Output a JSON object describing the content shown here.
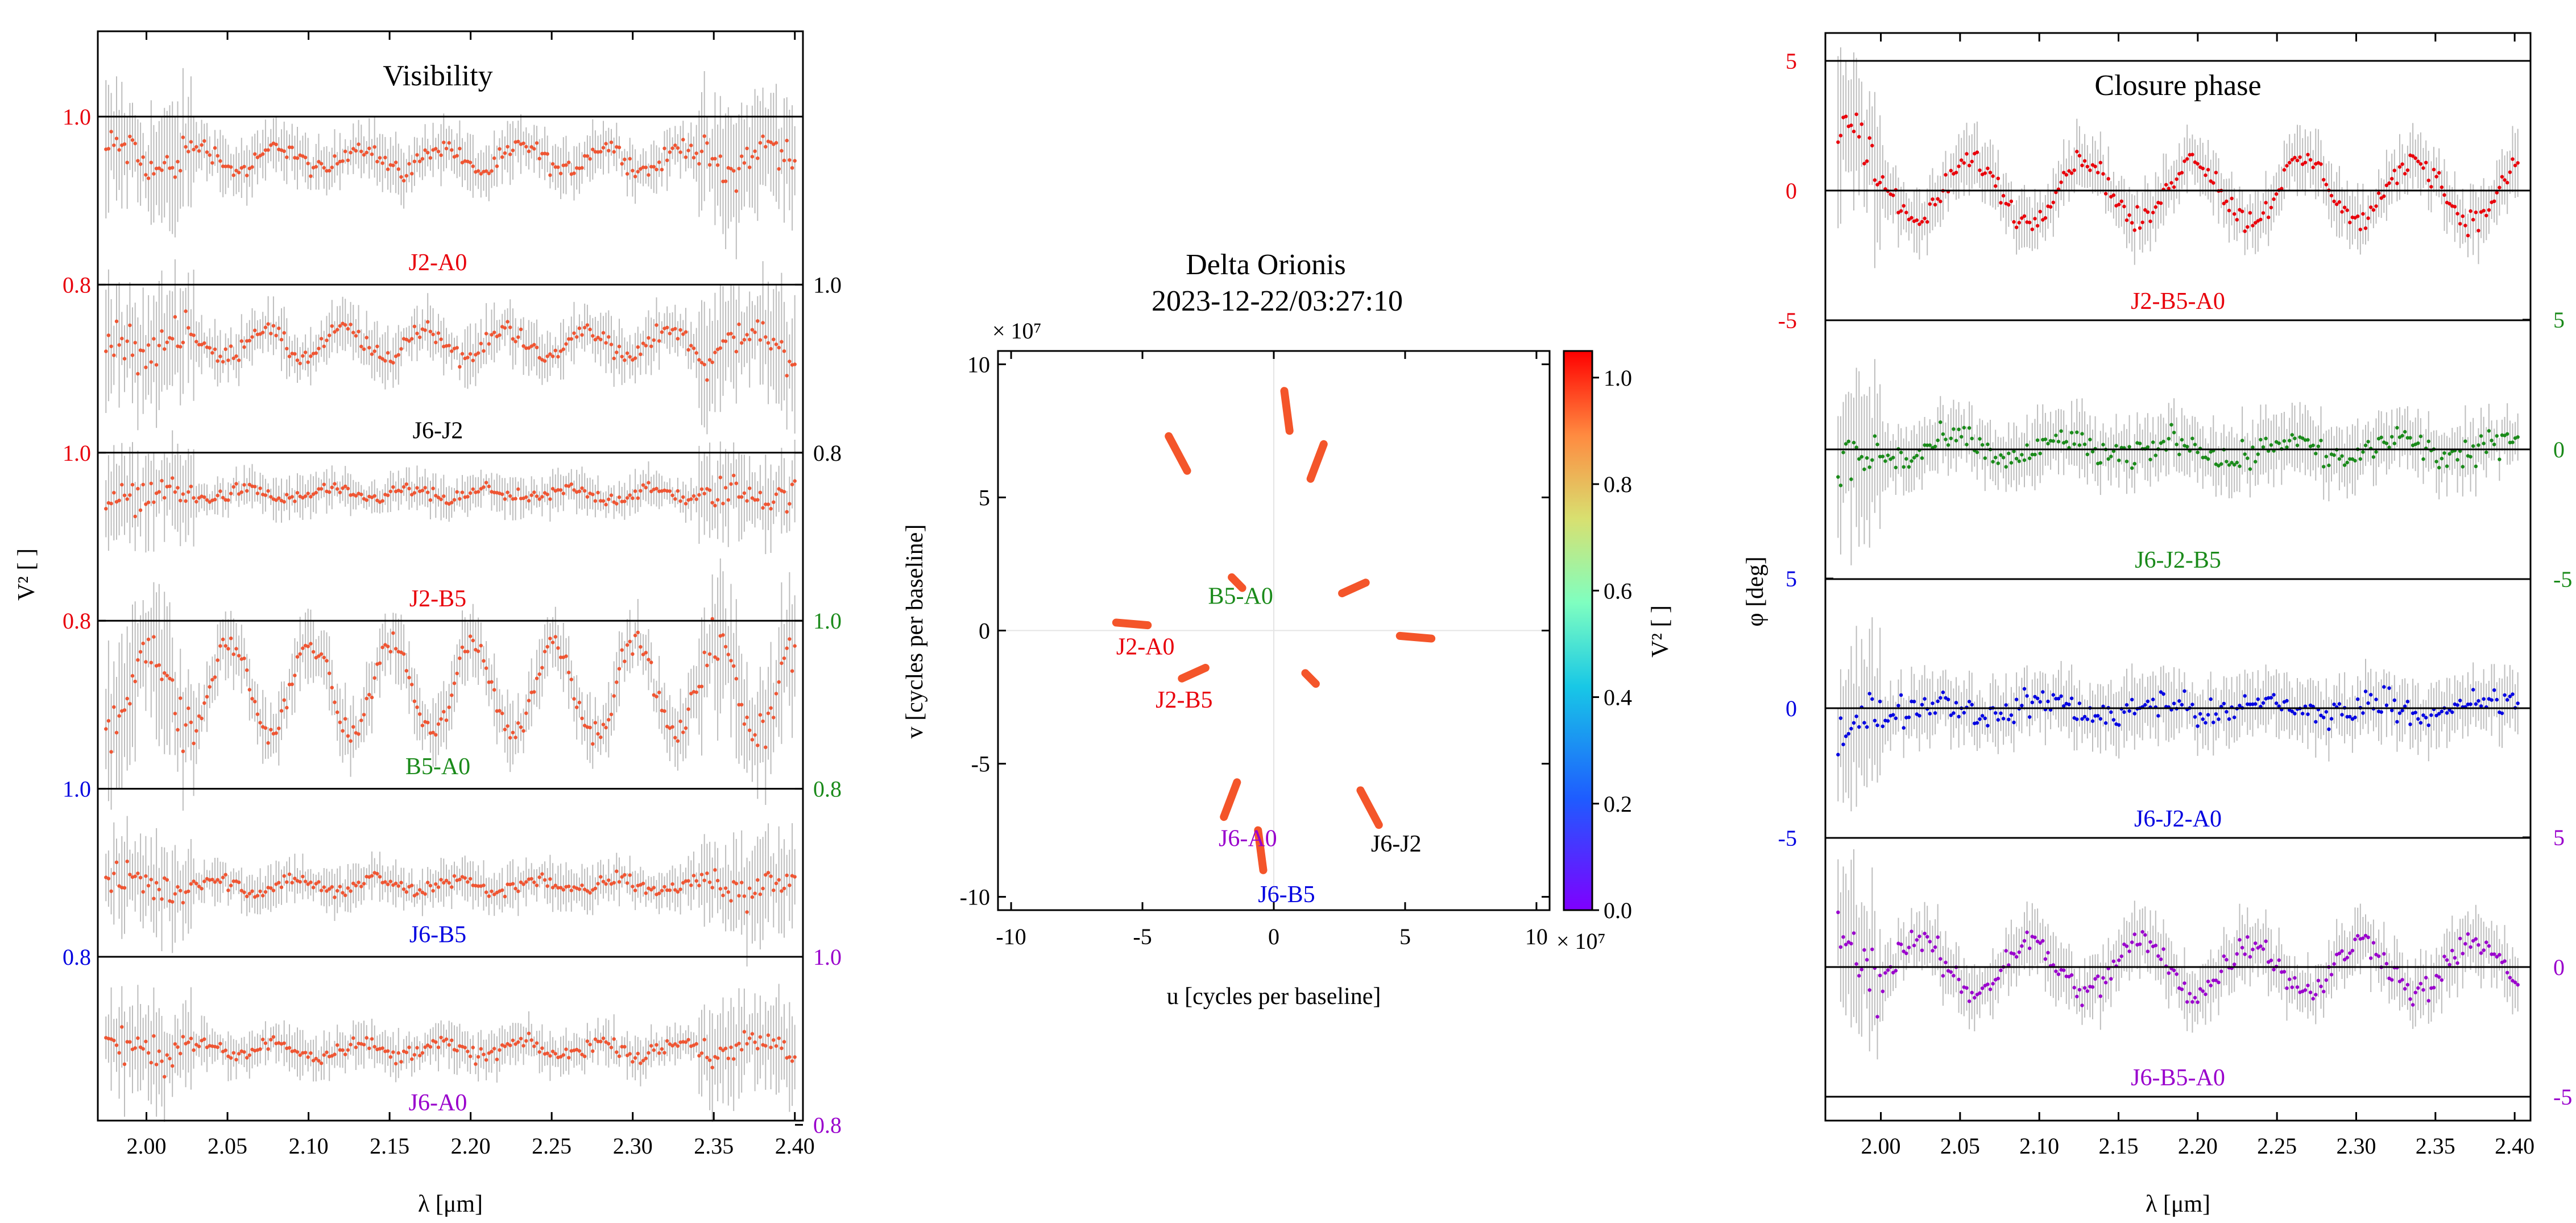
{
  "colors": {
    "red": "#e8000b",
    "black": "#000000",
    "green": "#1a8a1a",
    "blue": "#0000e0",
    "purple": "#9900cc",
    "data": "#e8000b",
    "point": "#ee5533",
    "errbar": "#bdbdbd",
    "cb_bg": "#ffffff"
  },
  "chart_data": [
    {
      "type": "scatter",
      "title": "Visibility",
      "xlabel": "λ [μm]",
      "ylabel": "V² [ ]",
      "xlim": [
        1.97,
        2.405
      ],
      "x_ticks": [
        "2.00",
        "2.05",
        "2.10",
        "2.15",
        "2.20",
        "2.25",
        "2.30",
        "2.35",
        "2.40"
      ],
      "x_tick_values": [
        2.0,
        2.05,
        2.1,
        2.15,
        2.2,
        2.25,
        2.3,
        2.35,
        2.4
      ],
      "panels": [
        {
          "baseline": "J2-A0",
          "color": "red",
          "axis_side": "left",
          "tick_labels": [
            "1.0",
            "0.8"
          ],
          "tick_values": [
            1.0,
            0.8
          ],
          "level": 0.95,
          "amp": 0.015,
          "noise": 0.025
        },
        {
          "baseline": "J6-J2",
          "color": "black",
          "axis_side": "right",
          "tick_labels": [
            "1.0",
            "0.8"
          ],
          "tick_values": [
            1.0,
            0.8
          ],
          "level": 0.93,
          "amp": 0.018,
          "noise": 0.025
        },
        {
          "baseline": "J2-B5",
          "color": "red",
          "axis_side": "left",
          "tick_labels": [
            "1.0",
            "0.8"
          ],
          "tick_values": [
            1.0,
            0.8
          ],
          "level": 0.95,
          "amp": 0.006,
          "noise": 0.018
        },
        {
          "baseline": "B5-A0",
          "color": "green",
          "axis_side": "right",
          "tick_labels": [
            "1.0",
            "0.8"
          ],
          "tick_values": [
            1.0,
            0.8
          ],
          "level": 0.92,
          "amp": 0.055,
          "noise": 0.03
        },
        {
          "baseline": "J6-B5",
          "color": "blue",
          "axis_side": "left",
          "tick_labels": [
            "1.0",
            "0.8"
          ],
          "tick_values": [
            1.0,
            0.8
          ],
          "level": 0.885,
          "amp": 0.008,
          "noise": 0.02
        },
        {
          "baseline": "J6-A0",
          "color": "purple",
          "axis_side": "right",
          "tick_labels": [
            "1.0",
            "0.8"
          ],
          "tick_values": [
            1.0,
            0.8
          ],
          "level": 0.89,
          "amp": 0.008,
          "noise": 0.02
        }
      ]
    },
    {
      "type": "scatter",
      "title_line1": "Delta Orionis",
      "title_line2": "2023-12-22/03:27:10",
      "xlabel": "u [cycles per baseline]",
      "ylabel": "v [cycles per baseline]",
      "exponent_label": "× 10⁷",
      "xlim": [
        -10.5,
        10.5
      ],
      "ylim": [
        -10.5,
        10.5
      ],
      "x_ticks": [
        "-10",
        "-5",
        "0",
        "5",
        "10"
      ],
      "y_ticks": [
        "10",
        "5",
        "0",
        "-5",
        "-10"
      ],
      "tick_values": [
        -10,
        -5,
        0,
        5,
        10
      ],
      "colorbar_label": "V² [ ]",
      "colorbar_ticks": [
        "1.0",
        "0.8",
        "0.6",
        "0.4",
        "0.2",
        "0.0"
      ],
      "colorbar_tick_values": [
        1.0,
        0.8,
        0.6,
        0.4,
        0.2,
        0.0
      ],
      "tracks": [
        {
          "u": [
            0.4,
            0.6
          ],
          "v": [
            9.0,
            7.5
          ]
        },
        {
          "u": [
            -0.4,
            -0.6
          ],
          "v": [
            -9.0,
            -7.5
          ]
        },
        {
          "u": [
            -4.0,
            -3.3
          ],
          "v": [
            7.3,
            6.0
          ]
        },
        {
          "u": [
            4.0,
            3.3
          ],
          "v": [
            -7.3,
            -6.0
          ]
        },
        {
          "u": [
            1.9,
            1.4
          ],
          "v": [
            7.0,
            5.7
          ]
        },
        {
          "u": [
            -1.9,
            -1.4
          ],
          "v": [
            -7.0,
            -5.7
          ]
        },
        {
          "u": [
            -6.0,
            -4.8
          ],
          "v": [
            0.3,
            0.2
          ]
        },
        {
          "u": [
            6.0,
            4.8
          ],
          "v": [
            -0.3,
            -0.2
          ]
        },
        {
          "u": [
            -3.5,
            -2.6
          ],
          "v": [
            -1.8,
            -1.4
          ]
        },
        {
          "u": [
            3.5,
            2.6
          ],
          "v": [
            1.8,
            1.4
          ]
        },
        {
          "u": [
            -1.6,
            -1.2
          ],
          "v": [
            2.0,
            1.6
          ]
        },
        {
          "u": [
            1.6,
            1.2
          ],
          "v": [
            -2.0,
            -1.6
          ]
        }
      ],
      "labels": [
        {
          "text": "B5-A0",
          "u": -2.5,
          "v": 1.0,
          "color": "green"
        },
        {
          "text": "J2-A0",
          "u": -6.0,
          "v": -0.9,
          "color": "red"
        },
        {
          "text": "J2-B5",
          "u": -4.5,
          "v": -2.9,
          "color": "red"
        },
        {
          "text": "J6-A0",
          "u": -2.1,
          "v": -8.1,
          "color": "purple"
        },
        {
          "text": "J6-B5",
          "u": -0.6,
          "v": -10.2,
          "color": "blue"
        },
        {
          "text": "J6-J2",
          "u": 3.7,
          "v": -8.3,
          "color": "black"
        }
      ]
    },
    {
      "type": "scatter",
      "title": "Closure phase",
      "xlabel": "λ [μm]",
      "ylabel": "φ [deg]",
      "xlim": [
        1.965,
        2.41
      ],
      "x_ticks": [
        "2.00",
        "2.05",
        "2.10",
        "2.15",
        "2.20",
        "2.25",
        "2.30",
        "2.35",
        "2.40"
      ],
      "x_tick_values": [
        2.0,
        2.05,
        2.1,
        2.15,
        2.2,
        2.25,
        2.3,
        2.35,
        2.4
      ],
      "panels": [
        {
          "triplet": "J2-B5-A0",
          "color": "red",
          "axis_side": "left",
          "tick_labels": [
            "5",
            "0",
            "-5"
          ],
          "tick_values": [
            5,
            0,
            -5
          ],
          "amp": 1.2,
          "noise": 0.5
        },
        {
          "triplet": "J6-J2-B5",
          "color": "green",
          "axis_side": "right",
          "tick_labels": [
            "5",
            "0",
            "-5"
          ],
          "tick_values": [
            5,
            0,
            -5
          ],
          "amp": 0.4,
          "noise": 0.6
        },
        {
          "triplet": "J6-J2-A0",
          "color": "blue",
          "axis_side": "left",
          "tick_labels": [
            "5",
            "0",
            "-5"
          ],
          "tick_values": [
            5,
            0,
            -5
          ],
          "amp": 0.3,
          "noise": 0.6
        },
        {
          "triplet": "J6-B5-A0",
          "color": "purple",
          "axis_side": "right",
          "tick_labels": [
            "5",
            "0",
            "-5"
          ],
          "tick_values": [
            5,
            0,
            -5
          ],
          "amp": 1.0,
          "noise": 0.6
        }
      ]
    }
  ]
}
